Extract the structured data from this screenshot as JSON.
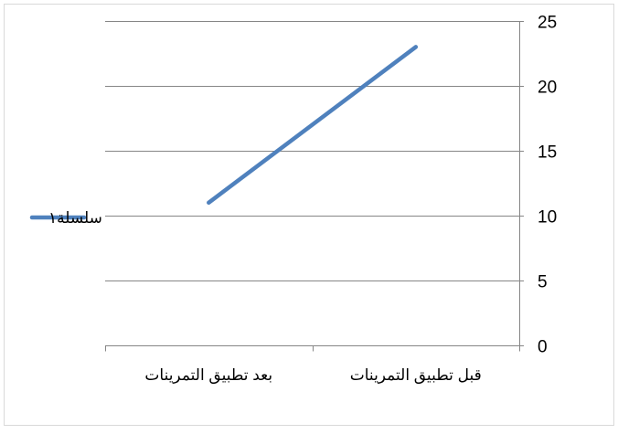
{
  "chart_data": {
    "type": "line",
    "categories": [
      "بعد تطبيق التمرينات",
      "قبل تطبيق التمرينات"
    ],
    "series": [
      {
        "name": "سلسلة١",
        "values": [
          11,
          23
        ],
        "color": "#4f81bd"
      }
    ],
    "ylim": [
      0,
      25
    ],
    "yticks": [
      0,
      5,
      10,
      15,
      20,
      25
    ],
    "y_axis_side": "right",
    "grid": true,
    "legend_position": "left"
  }
}
